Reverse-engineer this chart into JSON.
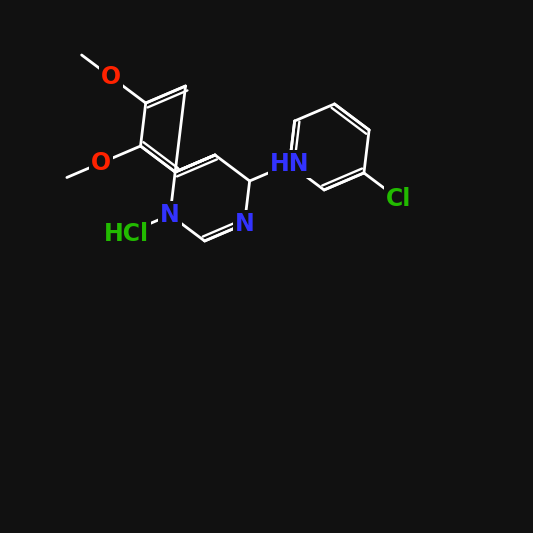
{
  "background_color": "#111111",
  "atom_colors": {
    "N": "#3333ff",
    "O": "#ff2200",
    "Cl_green": "#22bb00",
    "Cl_phenyl": "#22bb00",
    "HN": "#3333ff",
    "HCl": "#22bb00",
    "C": "#ffffff"
  },
  "lw": 2.0,
  "fs": 17
}
